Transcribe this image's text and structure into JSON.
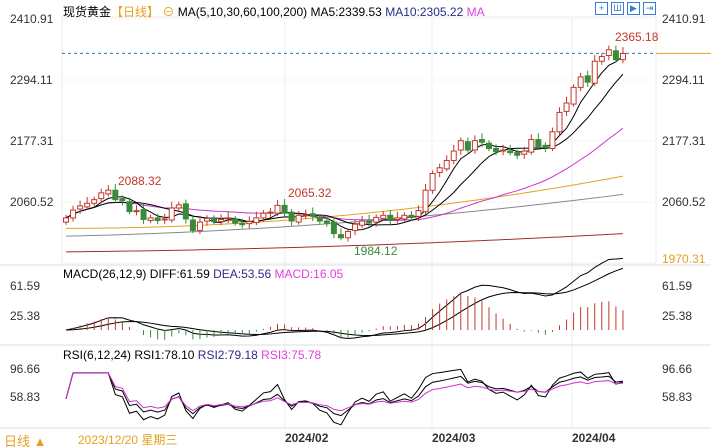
{
  "header": {
    "instrument": "现货黄金",
    "period": "【日线】",
    "ma_label": "MA(5,10,30,60,100,200)",
    "ma5": "MA5:2339.53",
    "ma10": "MA10:2305.22",
    "ma_more": "MA"
  },
  "toolbar": [
    {
      "icon": "crosshair-icon",
      "glyph": "+"
    },
    {
      "icon": "zoom-in-icon",
      "glyph": "Ш"
    },
    {
      "icon": "play-icon",
      "glyph": "▶"
    },
    {
      "icon": "forward-icon",
      "glyph": "⇥"
    }
  ],
  "price_axis": [
    "2410.91",
    "2294.11",
    "2177.31",
    "2060.52"
  ],
  "price_axis_bottom": "1970.31",
  "annotations": {
    "high1": "2088.32",
    "high2": "2065.32",
    "low1": "1984.12",
    "high3": "2365.18"
  },
  "macd": {
    "label": "MACD(26,12,9)",
    "diff": "DIFF:61.59",
    "dea": "DEA:53.56",
    "macd": "MACD:16.05",
    "axis": [
      "61.59",
      "25.38"
    ]
  },
  "rsi": {
    "label": "RSI(6,12,24)",
    "rsi1": "RSI1:78.10",
    "rsi2": "RSI2:79.18",
    "rsi3": "RSI3:75.78",
    "axis": [
      "96.66",
      "58.83"
    ]
  },
  "footer": {
    "period": "日线 ▲",
    "date": "2023/12/20 星期三",
    "months": [
      "2024/02",
      "2024/03",
      "2024/04"
    ]
  },
  "colors": {
    "up": "#c0392b",
    "down": "#3a8a3a",
    "ma5": "#000000",
    "ma10": "#000000",
    "ma30": "#cc33cc",
    "ma60": "#e6a020",
    "ma100": "#888888",
    "ma200": "#a03030",
    "last": "#e6a020"
  },
  "chart_data": {
    "type": "candlestick",
    "yrange": [
      1955,
      2425
    ],
    "closes": [
      2030,
      2045,
      2053,
      2058,
      2065,
      2078,
      2083,
      2065,
      2063,
      2042,
      2044,
      2027,
      2030,
      2025,
      2028,
      2049,
      2055,
      2028,
      2006,
      2022,
      2029,
      2023,
      2027,
      2030,
      2020,
      2017,
      2023,
      2030,
      2039,
      2041,
      2054,
      2039,
      2024,
      2035,
      2036,
      2033,
      2024,
      2020,
      2000,
      1992,
      2004,
      2018,
      2024,
      2020,
      2031,
      2035,
      2025,
      2030,
      2035,
      2031,
      2044,
      2083,
      2115,
      2126,
      2140,
      2158,
      2178,
      2160,
      2178,
      2175,
      2163,
      2157,
      2160,
      2155,
      2150,
      2158,
      2180,
      2167,
      2165,
      2195,
      2232,
      2250,
      2280,
      2300,
      2290,
      2330,
      2339,
      2352,
      2333,
      2345
    ],
    "ma_long": {
      "ma60": [
        2010,
        2110
      ],
      "ma100": [
        1995,
        2075
      ],
      "ma200": [
        1965,
        2000
      ]
    }
  }
}
